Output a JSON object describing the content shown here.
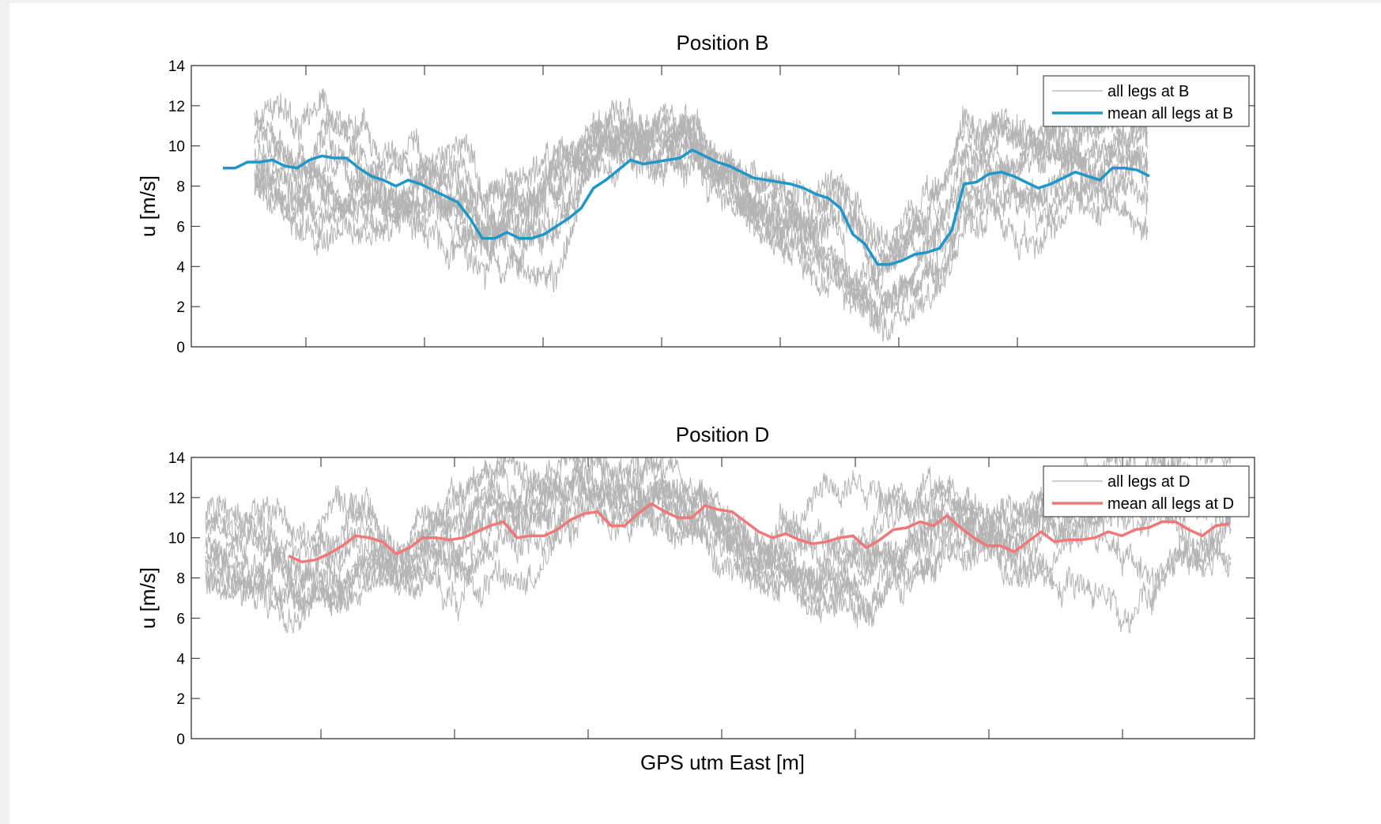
{
  "chart_data": [
    {
      "type": "line",
      "title": "Position B",
      "ylabel": "u [m/s]",
      "xlabel": "",
      "ylim": [
        0,
        14
      ],
      "yticks": [
        0,
        2,
        4,
        6,
        8,
        10,
        12,
        14
      ],
      "grid": false,
      "legend_position": "top-right",
      "legend": [
        "all legs at B",
        "mean all legs at B"
      ],
      "colors": {
        "all_legs": "#b4b4b4",
        "mean": "#1f97c9"
      },
      "series": [
        {
          "name": "mean all legs at B",
          "values": [
            8.9,
            8.9,
            9.2,
            9.2,
            9.3,
            9.0,
            8.9,
            9.3,
            9.5,
            9.4,
            9.4,
            8.9,
            8.5,
            8.3,
            8.0,
            8.3,
            8.1,
            7.8,
            7.5,
            7.2,
            6.4,
            5.4,
            5.4,
            5.7,
            5.4,
            5.4,
            5.6,
            6.0,
            6.4,
            6.9,
            7.9,
            8.3,
            8.8,
            9.3,
            9.1,
            9.2,
            9.3,
            9.4,
            9.8,
            9.5,
            9.2,
            9.0,
            8.7,
            8.4,
            8.3,
            8.2,
            8.1,
            7.9,
            7.6,
            7.4,
            6.9,
            5.6,
            5.1,
            4.1,
            4.1,
            4.3,
            4.6,
            4.7,
            4.9,
            5.8,
            8.1,
            8.2,
            8.6,
            8.7,
            8.5,
            8.2,
            7.9,
            8.1,
            8.4,
            8.7,
            8.5,
            8.3,
            8.9,
            8.9,
            8.8,
            8.5
          ]
        }
      ]
    },
    {
      "type": "line",
      "title": "Position D",
      "ylabel": "u [m/s]",
      "xlabel": "GPS utm East [m]",
      "ylim": [
        0,
        14
      ],
      "yticks": [
        0,
        2,
        4,
        6,
        8,
        10,
        12,
        14
      ],
      "grid": false,
      "legend_position": "top-right",
      "legend": [
        "all legs at D",
        "mean all legs at D"
      ],
      "colors": {
        "all_legs": "#b4b4b4",
        "mean": "#f07878"
      },
      "series": [
        {
          "name": "mean all legs at D",
          "values": [
            9.1,
            8.8,
            8.9,
            9.2,
            9.6,
            10.1,
            10.0,
            9.8,
            9.2,
            9.5,
            10.0,
            10.0,
            9.9,
            10.0,
            10.3,
            10.6,
            10.8,
            10.0,
            10.1,
            10.1,
            10.4,
            10.9,
            11.2,
            11.3,
            10.6,
            10.6,
            11.2,
            11.7,
            11.3,
            11.0,
            11.0,
            11.6,
            11.4,
            11.3,
            10.8,
            10.3,
            10.0,
            10.2,
            9.9,
            9.7,
            9.8,
            10.0,
            10.1,
            9.5,
            9.9,
            10.4,
            10.5,
            10.8,
            10.6,
            11.1,
            10.5,
            10.0,
            9.6,
            9.6,
            9.3,
            9.8,
            10.3,
            9.8,
            9.9,
            9.9,
            10.0,
            10.3,
            10.1,
            10.4,
            10.5,
            10.8,
            10.8,
            10.4,
            10.1,
            10.6,
            10.7
          ]
        }
      ]
    }
  ]
}
